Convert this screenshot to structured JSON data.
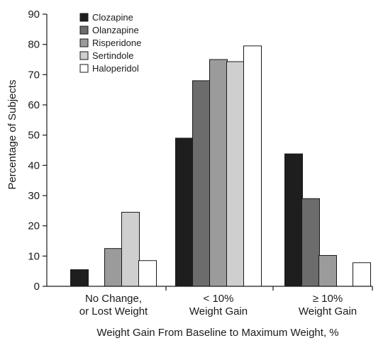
{
  "chart_data": {
    "type": "bar",
    "title": "",
    "xlabel": "Weight Gain From Baseline to Maximum Weight, %",
    "ylabel": "Percentage of Subjects",
    "ylim": [
      0,
      90
    ],
    "yticks": [
      0,
      10,
      20,
      30,
      40,
      50,
      60,
      70,
      80,
      90
    ],
    "grid": false,
    "legend_position": "top-left",
    "categories": [
      [
        "No Change,",
        "or Lost Weight"
      ],
      [
        "< 10%",
        "Weight Gain"
      ],
      [
        "≥ 10%",
        "Weight Gain"
      ]
    ],
    "series": [
      {
        "name": "Clozapine",
        "color": "#1e1e1e",
        "values": [
          5.5,
          49,
          43.8
        ]
      },
      {
        "name": "Olanzapine",
        "color": "#6c6c6c",
        "values": [
          null,
          68,
          29
        ]
      },
      {
        "name": "Risperidone",
        "color": "#9b9b9b",
        "values": [
          12.5,
          75,
          10.2
        ]
      },
      {
        "name": "Sertindole",
        "color": "#cfcfcf",
        "values": [
          24.5,
          74.3,
          null
        ]
      },
      {
        "name": "Haloperidol",
        "color": "#ffffff",
        "values": [
          8.5,
          79.5,
          7.8
        ]
      }
    ]
  }
}
